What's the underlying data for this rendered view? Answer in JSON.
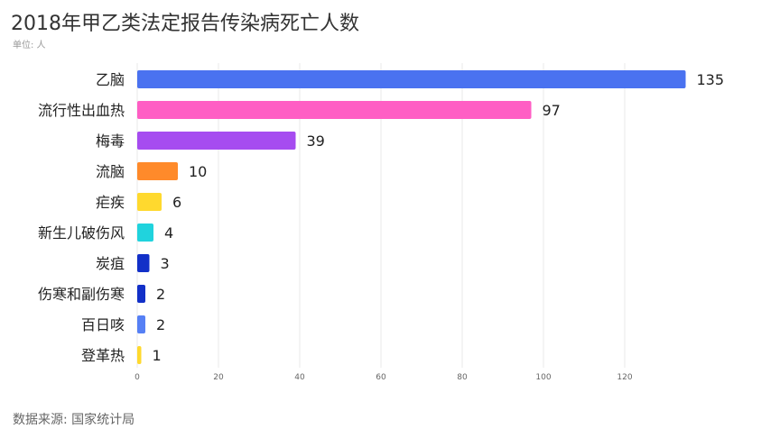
{
  "header": {
    "title": "2018年甲乙类法定报告传染病死亡人数",
    "unit": "单位: 人"
  },
  "footer": {
    "source": "数据来源: 国家统计局"
  },
  "chart_data": {
    "type": "bar",
    "orientation": "horizontal",
    "categories": [
      "乙脑",
      "流行性出血热",
      "梅毒",
      "流脑",
      "疟疾",
      "新生儿破伤风",
      "炭疽",
      "伤寒和副伤寒",
      "百日咳",
      "登革热"
    ],
    "values": [
      135,
      97,
      39,
      10,
      6,
      4,
      3,
      2,
      2,
      1
    ],
    "colors": [
      "#4a72f0",
      "#ff5ec4",
      "#a64cf0",
      "#ff8a2a",
      "#ffd92e",
      "#20d3dd",
      "#1230c8",
      "#1230c8",
      "#5680f5",
      "#ffd92e"
    ],
    "xlim": [
      0,
      135
    ],
    "x_ticks": [
      0,
      20,
      40,
      60,
      80,
      100,
      120
    ],
    "grid": true,
    "data_labels": true
  }
}
